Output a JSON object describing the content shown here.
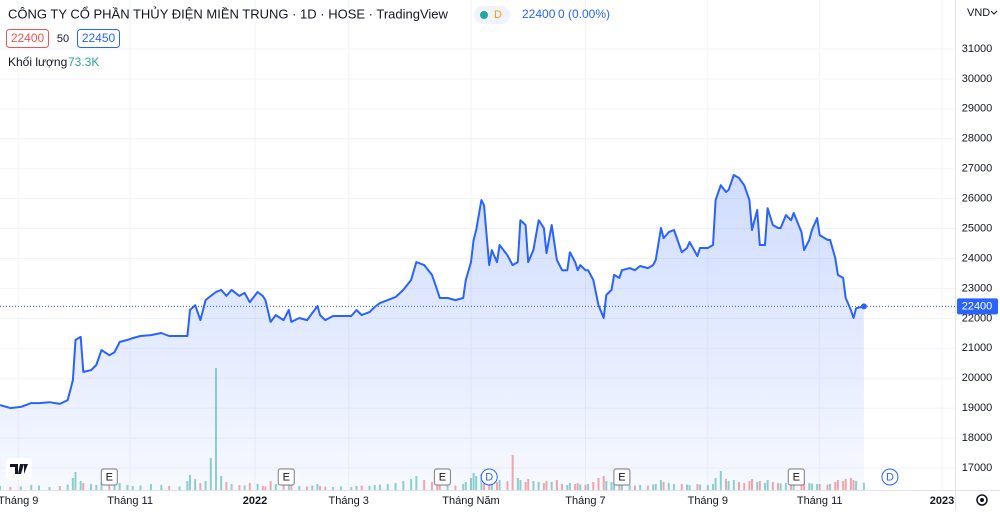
{
  "header": {
    "title": "CÔNG TY CỔ PHẦN THỦY ĐIỆN MIỀN TRUNG · 1D · HOSE · TradingView",
    "badge": "D",
    "price": "22400",
    "change": "0 (0.00%)"
  },
  "quote": {
    "bid": "22400",
    "spread": "50",
    "ask": "22450"
  },
  "volume_label": "Khối lượng",
  "volume_value": "73.3K",
  "chart_data": {
    "type": "area",
    "color": "#2962ff",
    "currency": "VND",
    "x": [
      -7,
      -3,
      1,
      5,
      8,
      12,
      16,
      19,
      21,
      22,
      24,
      25,
      28,
      30,
      32,
      35,
      37,
      39,
      42,
      44,
      47,
      51,
      55,
      58,
      62,
      65,
      66,
      68,
      70,
      72,
      74,
      76,
      78,
      80,
      82,
      85,
      87,
      89,
      92,
      94,
      95,
      97,
      99,
      102,
      104,
      105,
      108,
      111,
      113,
      115,
      116,
      118,
      121,
      124,
      128,
      130,
      132,
      135,
      137,
      139,
      142,
      145,
      148,
      151,
      153,
      156,
      159,
      161,
      162,
      165,
      168,
      171,
      172,
      174,
      175,
      176,
      178,
      179,
      181,
      182,
      184,
      185,
      188,
      190,
      192,
      193,
      195,
      196,
      198,
      200,
      202,
      203,
      205,
      207,
      209,
      211,
      212,
      214,
      215,
      216,
      218,
      219,
      221,
      223,
      225,
      226,
      228,
      229,
      231,
      232,
      235,
      237,
      239,
      242,
      244,
      245,
      247,
      248,
      250,
      252,
      255,
      257,
      258,
      261,
      262,
      265,
      267,
      268,
      270,
      272,
      273,
      275,
      277,
      279,
      281,
      282,
      284,
      285,
      287,
      288,
      290,
      292,
      293,
      295,
      297,
      298,
      301,
      302,
      304,
      305,
      307,
      308,
      311,
      312,
      314,
      315,
      317,
      318,
      320,
      321,
      322,
      325
    ],
    "values": [
      19100,
      19000,
      19040,
      19170,
      19170,
      19200,
      19140,
      19270,
      19940,
      21280,
      21380,
      20210,
      20270,
      20440,
      20940,
      20770,
      20870,
      21210,
      21280,
      21340,
      21410,
      21440,
      21510,
      21410,
      21410,
      21410,
      22280,
      22440,
      21940,
      22610,
      22750,
      22880,
      22950,
      22750,
      22950,
      22750,
      22850,
      22540,
      22880,
      22750,
      22610,
      21880,
      22110,
      21940,
      22280,
      21880,
      22010,
      21940,
      22180,
      22410,
      22110,
      21940,
      22080,
      22080,
      22080,
      22280,
      22110,
      22210,
      22380,
      22510,
      22610,
      22710,
      22950,
      23280,
      23880,
      23780,
      23450,
      22950,
      22680,
      22680,
      22610,
      22680,
      23280,
      23880,
      24620,
      24950,
      25950,
      25780,
      23780,
      24280,
      23880,
      24450,
      24110,
      23780,
      23880,
      25280,
      25120,
      23880,
      24280,
      25280,
      25020,
      24180,
      25120,
      23950,
      23610,
      23610,
      24210,
      23880,
      23610,
      23780,
      23610,
      23610,
      23280,
      22440,
      22010,
      22780,
      22950,
      23450,
      23350,
      23610,
      23680,
      23610,
      23750,
      23680,
      23780,
      23950,
      25020,
      24680,
      24880,
      24950,
      24210,
      24350,
      24550,
      24080,
      24350,
      24350,
      24450,
      25950,
      26450,
      26220,
      26290,
      26790,
      26690,
      26450,
      25950,
      24950,
      25620,
      24450,
      24450,
      25680,
      25120,
      25020,
      25020,
      25450,
      25280,
      25520,
      24880,
      24280,
      24620,
      24950,
      25350,
      24780,
      24620,
      24620,
      24010,
      23450,
      23350,
      22680,
      22280,
      22010,
      22340,
      22400
    ],
    "volume": [
      40,
      30,
      35,
      50,
      45,
      30,
      40,
      55,
      120,
      180,
      90,
      70,
      60,
      50,
      80,
      60,
      45,
      70,
      50,
      40,
      45,
      60,
      50,
      40,
      35,
      90,
      150,
      110,
      70,
      90,
      320,
      1220,
      140,
      80,
      60,
      50,
      45,
      70,
      60,
      40,
      35,
      90,
      60,
      45,
      55,
      50,
      40,
      35,
      45,
      60,
      40,
      35,
      30,
      35,
      30,
      40,
      45,
      40,
      50,
      55,
      60,
      70,
      90,
      110,
      140,
      100,
      80,
      90,
      60,
      50,
      45,
      60,
      80,
      120,
      170,
      140,
      160,
      110,
      130,
      90,
      80,
      100,
      90,
      350,
      120,
      100,
      80,
      110,
      90,
      80,
      70,
      90,
      80,
      100,
      60,
      50,
      70,
      60,
      70,
      55,
      50,
      60,
      80,
      120,
      140,
      90,
      80,
      70,
      60,
      55,
      50,
      45,
      50,
      45,
      55,
      60,
      100,
      80,
      70,
      60,
      60,
      55,
      50,
      60,
      55,
      50,
      60,
      120,
      190,
      110,
      90,
      100,
      80,
      70,
      90,
      110,
      80,
      90,
      70,
      100,
      80,
      70,
      65,
      70,
      60,
      70,
      80,
      90,
      70,
      65,
      60,
      60,
      55,
      60,
      80,
      100,
      90,
      110,
      120,
      100,
      90,
      73.3
    ],
    "xlim": [
      -7,
      360
    ],
    "xticks": [
      {
        "value": 0,
        "label": "Tháng 9"
      },
      {
        "value": 43,
        "label": "Tháng 11"
      },
      {
        "value": 91,
        "label": "2022"
      },
      {
        "value": 127,
        "label": "Tháng 3"
      },
      {
        "value": 174,
        "label": "Tháng Năm"
      },
      {
        "value": 218,
        "label": "Tháng 7"
      },
      {
        "value": 265,
        "label": "Tháng 9"
      },
      {
        "value": 308,
        "label": "Tháng 11"
      },
      {
        "value": 355,
        "label": "2023"
      }
    ],
    "ylim": [
      16265,
      32636
    ],
    "yticks": [
      17000,
      18000,
      19000,
      20000,
      21000,
      22000,
      23000,
      24000,
      25000,
      26000,
      27000,
      28000,
      29000,
      30000,
      31000
    ],
    "y2lim": [
      0,
      4900
    ],
    "grid": true,
    "events": [
      {
        "x": 35,
        "label": "E"
      },
      {
        "x": 103,
        "label": "E"
      },
      {
        "x": 163,
        "label": "E"
      },
      {
        "x": 232,
        "label": "E"
      },
      {
        "x": 299,
        "label": "E"
      },
      {
        "x": 181,
        "label": "D"
      },
      {
        "x": 335,
        "label": "D"
      }
    ]
  }
}
